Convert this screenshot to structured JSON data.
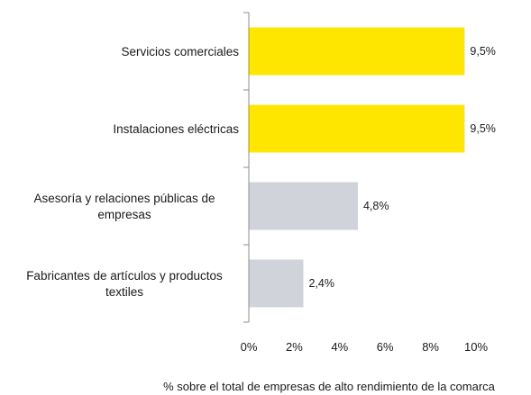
{
  "chart_data": {
    "type": "bar",
    "orientation": "horizontal",
    "categories": [
      "Servicios comerciales",
      "Instalaciones eléctricas",
      "Asesoría y relaciones públicas de empresas",
      "Fabricantes de artículos y productos textiles"
    ],
    "category_lines": [
      [
        "Servicios comerciales"
      ],
      [
        "Instalaciones eléctricas"
      ],
      [
        "Asesoría y relaciones públicas de",
        "empresas"
      ],
      [
        "Fabricantes de artículos y productos",
        "textiles"
      ]
    ],
    "values": [
      9.5,
      9.5,
      4.8,
      2.4
    ],
    "data_labels": [
      "9,5%",
      "9,5%",
      "4,8%",
      "2,4%"
    ],
    "bar_colors": [
      "#ffe600",
      "#ffe600",
      "#d0d3da",
      "#d0d3da"
    ],
    "xlim": [
      0,
      10
    ],
    "ticks": [
      0,
      2,
      4,
      6,
      8,
      10
    ],
    "tick_labels": [
      "0%",
      "2%",
      "4%",
      "6%",
      "8%",
      "10%"
    ],
    "xlabel": "% sobre el total de empresas de alto rendimiento de la comarca",
    "ylabel": "",
    "title": "",
    "grid": false,
    "legend": "none"
  }
}
